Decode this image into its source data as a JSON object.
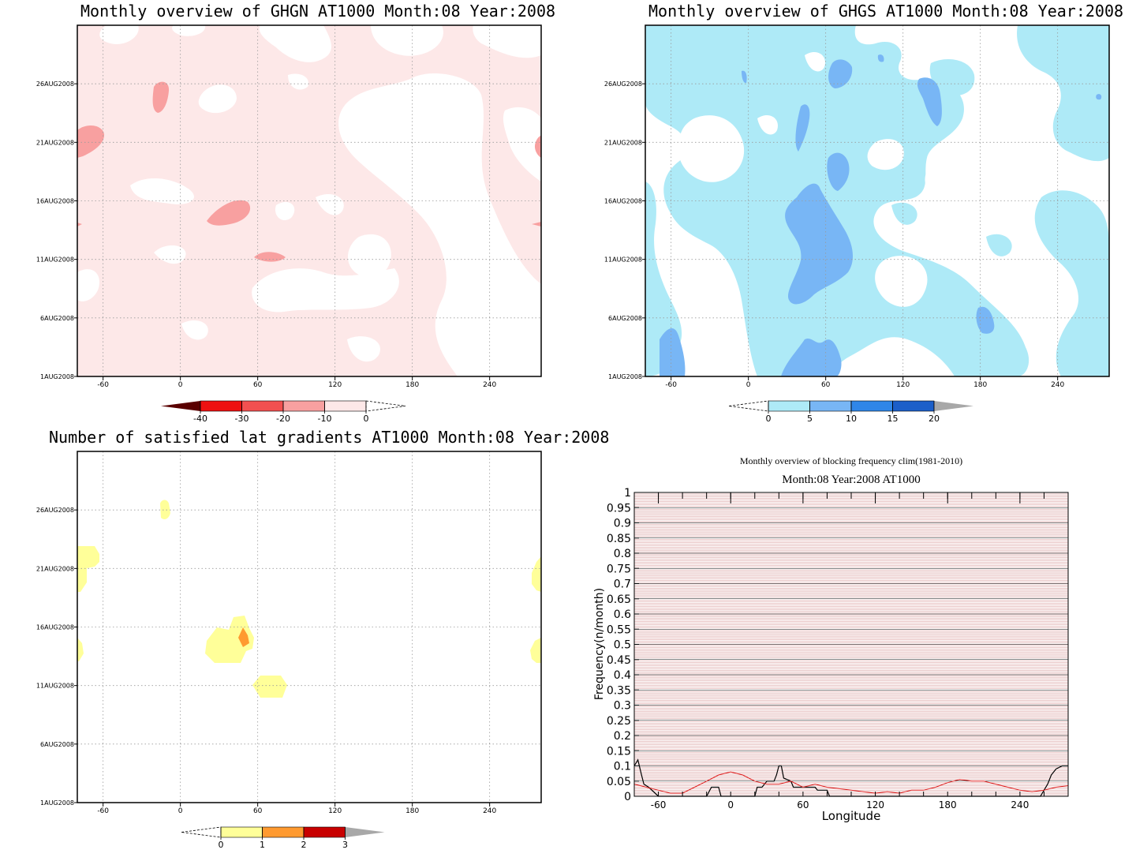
{
  "panels": {
    "ghgn": {
      "title": "Monthly overview of GHGN AT1000 Month:08 Year:2008"
    },
    "ghgs": {
      "title": "Monthly overview of GHGS AT1000 Month:08 Year:2008"
    },
    "lat": {
      "title": "Number of satisfied lat gradients AT1000 Month:08 Year:2008"
    },
    "freq": {
      "title": "Monthly overview of blocking frequency clim(1981-2010)",
      "subtitle": "Month:08 Year:2008  AT1000"
    }
  },
  "map_axes": {
    "x_ticks": [
      "-60",
      "0",
      "60",
      "120",
      "180",
      "240"
    ],
    "x_values": [
      -60,
      0,
      60,
      120,
      180,
      240
    ],
    "x_range": [
      -80,
      280
    ],
    "y_ticks": [
      "1AUG2008",
      "6AUG2008",
      "11AUG2008",
      "16AUG2008",
      "21AUG2008",
      "26AUG2008"
    ],
    "y_values": [
      1,
      6,
      11,
      16,
      21,
      26
    ],
    "y_range": [
      1,
      31
    ],
    "grid": "dotted"
  },
  "colorbars": {
    "ghgn": {
      "labels": [
        "-40",
        "-30",
        "-20",
        "-10",
        "0"
      ],
      "colors": [
        "#5a0000",
        "#ee1010",
        "#f25050",
        "#f8a0a0",
        "#fde8e8",
        "#ffffff"
      ]
    },
    "ghgs": {
      "labels": [
        "0",
        "5",
        "10",
        "15",
        "20"
      ],
      "colors": [
        "#ffffff",
        "#aeeaf7",
        "#78b6f5",
        "#2f86e8",
        "#1c5fc9",
        "#a8a8a8"
      ]
    },
    "lat": {
      "labels": [
        "0",
        "1",
        "2",
        "3"
      ],
      "colors": [
        "#ffffff",
        "#ffff99",
        "#ff9a30",
        "#c80000",
        "#a8a8a8"
      ]
    }
  },
  "chart_data": [
    {
      "type": "heatmap",
      "title": "Monthly overview of GHGN AT1000 Month:08 Year:2008",
      "x_range": [
        -80,
        280
      ],
      "y_range": [
        "1AUG2008",
        "31AUG2008"
      ],
      "levels": [
        -40,
        -30,
        -20,
        -10,
        0
      ],
      "description_values": "mostly values between -10 and 0 with small patches between -20 and -10"
    },
    {
      "type": "heatmap",
      "title": "Monthly overview of GHGS AT1000 Month:08 Year:2008",
      "x_range": [
        -80,
        280
      ],
      "y_range": [
        "1AUG2008",
        "31AUG2008"
      ],
      "levels": [
        0,
        5,
        10,
        15,
        20
      ],
      "description_values": "mostly values between 0 and 5 with patches between 5 and 10"
    },
    {
      "type": "heatmap",
      "title": "Number of satisfied lat gradients AT1000 Month:08 Year:2008",
      "x_range": [
        -80,
        280
      ],
      "y_range": [
        "1AUG2008",
        "31AUG2008"
      ],
      "levels": [
        0,
        1,
        2,
        3
      ],
      "description_values": "sparse patches of value 1, one small patch of value 2 near lon 50 on 15AUG2008"
    },
    {
      "type": "line",
      "title": "Monthly overview of blocking frequency clim(1981-2010)",
      "subtitle": "Month:08 Year:2008  AT1000",
      "xlabel": "Longitude",
      "ylabel": "Frequency(n/month)",
      "xlim": [
        -80,
        280
      ],
      "ylim": [
        0,
        1
      ],
      "x_ticks": [
        -60,
        0,
        60,
        120,
        180,
        240
      ],
      "y_ticks": [
        0,
        0.05,
        0.1,
        0.15,
        0.2,
        0.25,
        0.3,
        0.35,
        0.4,
        0.45,
        0.5,
        0.55,
        0.6,
        0.65,
        0.7,
        0.75,
        0.8,
        0.85,
        0.9,
        0.95,
        1
      ],
      "x_tick_labels": [
        "-60",
        "0",
        "60",
        "120",
        "180",
        "240"
      ],
      "y_tick_labels": [
        "0",
        "0.05",
        "0.1",
        "0.15",
        "0.2",
        "0.25",
        "0.3",
        "0.35",
        "0.4",
        "0.45",
        "0.5",
        "0.55",
        "0.6",
        "0.65",
        "0.7",
        "0.75",
        "0.8",
        "0.85",
        "0.9",
        "0.95",
        "1"
      ],
      "series": [
        {
          "color": "#000000",
          "x": [
            -80,
            -77,
            -74,
            -72,
            -68,
            -60,
            -55,
            -20,
            -16,
            -10,
            -8,
            -5,
            0,
            20,
            22,
            26,
            30,
            36,
            38,
            40,
            42,
            44,
            50,
            52,
            60,
            70,
            72,
            80,
            82,
            86,
            90,
            200,
            257,
            260,
            263,
            266,
            270,
            275,
            280
          ],
          "y": [
            0.1,
            0.12,
            0.07,
            0.04,
            0.03,
            0,
            0,
            0,
            0.03,
            0.03,
            0,
            0,
            0,
            0,
            0.03,
            0.03,
            0.05,
            0.05,
            0.07,
            0.1,
            0.1,
            0.06,
            0.05,
            0.03,
            0.03,
            0.03,
            0.02,
            0.02,
            0,
            0,
            0,
            0,
            0,
            0.02,
            0.04,
            0.07,
            0.09,
            0.1,
            0.1
          ]
        },
        {
          "color": "#e02020",
          "x": [
            -80,
            -75,
            -70,
            -60,
            -50,
            -40,
            -30,
            -20,
            -10,
            0,
            10,
            20,
            30,
            40,
            50,
            60,
            70,
            80,
            90,
            100,
            110,
            120,
            130,
            140,
            150,
            160,
            170,
            180,
            190,
            200,
            210,
            220,
            230,
            240,
            250,
            260,
            270,
            280
          ],
          "y": [
            0.04,
            0.035,
            0.03,
            0.02,
            0.01,
            0.01,
            0.03,
            0.05,
            0.07,
            0.08,
            0.07,
            0.05,
            0.04,
            0.04,
            0.05,
            0.03,
            0.04,
            0.03,
            0.025,
            0.02,
            0.015,
            0.01,
            0.015,
            0.01,
            0.02,
            0.02,
            0.03,
            0.045,
            0.055,
            0.05,
            0.05,
            0.04,
            0.03,
            0.02,
            0.015,
            0.02,
            0.03,
            0.035
          ]
        }
      ]
    }
  ]
}
